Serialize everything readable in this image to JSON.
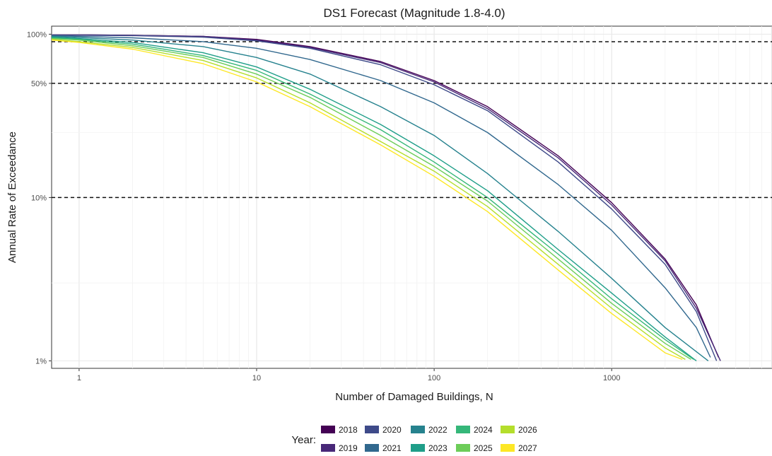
{
  "chart_data": {
    "type": "line",
    "title": "DS1 Forecast (Magnitude 1.8-4.0)",
    "xlabel": "Number of Damaged Buildings, N",
    "ylabel": "Annual Rate of Exceedance",
    "x_scale": "log",
    "y_scale": "log",
    "xlim": [
      0.7,
      8000
    ],
    "ylim": [
      0.009,
      1.12
    ],
    "x_ticks": [
      {
        "value": 1,
        "label": "1"
      },
      {
        "value": 10,
        "label": "10"
      },
      {
        "value": 100,
        "label": "100"
      },
      {
        "value": 1000,
        "label": "1000"
      }
    ],
    "y_ticks": [
      {
        "value": 0.01,
        "label": "1%"
      },
      {
        "value": 0.1,
        "label": "10%"
      },
      {
        "value": 0.5,
        "label": "50%"
      },
      {
        "value": 1.0,
        "label": "100%"
      }
    ],
    "reference_lines": [
      0.9,
      0.5,
      0.1
    ],
    "grid": true,
    "legend": {
      "title": "Year:",
      "position": "bottom"
    },
    "series": [
      {
        "name": "2018",
        "color": "#440154",
        "x": [
          0.7,
          1,
          2,
          5,
          10,
          20,
          50,
          100,
          200,
          500,
          1000,
          2000,
          3000,
          4000
        ],
        "y": [
          0.99,
          0.99,
          0.985,
          0.97,
          0.93,
          0.84,
          0.68,
          0.52,
          0.36,
          0.18,
          0.093,
          0.042,
          0.022,
          0.0105
        ]
      },
      {
        "name": "2019",
        "color": "#482878",
        "x": [
          0.7,
          1,
          2,
          5,
          10,
          20,
          50,
          100,
          200,
          500,
          1000,
          2000,
          3000,
          4100
        ],
        "y": [
          0.99,
          0.99,
          0.985,
          0.97,
          0.92,
          0.83,
          0.67,
          0.51,
          0.35,
          0.175,
          0.09,
          0.041,
          0.021,
          0.01
        ]
      },
      {
        "name": "2020",
        "color": "#3E4A89",
        "x": [
          0.7,
          1,
          2,
          5,
          10,
          20,
          50,
          100,
          200,
          500,
          1000,
          2000,
          3000,
          3900
        ],
        "y": [
          0.99,
          0.985,
          0.98,
          0.96,
          0.91,
          0.82,
          0.65,
          0.49,
          0.34,
          0.165,
          0.085,
          0.039,
          0.02,
          0.01
        ]
      },
      {
        "name": "2021",
        "color": "#31688E",
        "x": [
          0.7,
          1,
          2,
          5,
          10,
          20,
          50,
          100,
          200,
          500,
          1000,
          2000,
          3000,
          3600
        ],
        "y": [
          0.98,
          0.97,
          0.95,
          0.9,
          0.82,
          0.7,
          0.52,
          0.38,
          0.25,
          0.12,
          0.063,
          0.028,
          0.016,
          0.0105
        ]
      },
      {
        "name": "2022",
        "color": "#26828E",
        "x": [
          0.7,
          1,
          2,
          5,
          10,
          20,
          50,
          100,
          200,
          500,
          1000,
          2000,
          3500
        ],
        "y": [
          0.97,
          0.955,
          0.92,
          0.84,
          0.72,
          0.57,
          0.36,
          0.24,
          0.14,
          0.062,
          0.032,
          0.016,
          0.01
        ]
      },
      {
        "name": "2023",
        "color": "#1F9E89",
        "x": [
          0.7,
          1,
          2,
          5,
          10,
          20,
          50,
          100,
          200,
          500,
          1000,
          2000,
          3000
        ],
        "y": [
          0.96,
          0.94,
          0.89,
          0.77,
          0.63,
          0.46,
          0.28,
          0.18,
          0.11,
          0.048,
          0.026,
          0.014,
          0.01
        ]
      },
      {
        "name": "2024",
        "color": "#35B779",
        "x": [
          0.7,
          1,
          2,
          5,
          10,
          20,
          50,
          100,
          200,
          500,
          1000,
          2000,
          2900
        ],
        "y": [
          0.95,
          0.93,
          0.87,
          0.74,
          0.6,
          0.43,
          0.26,
          0.165,
          0.1,
          0.045,
          0.024,
          0.0135,
          0.0102
        ]
      },
      {
        "name": "2025",
        "color": "#6DCD59",
        "x": [
          0.7,
          1,
          2,
          5,
          10,
          20,
          50,
          100,
          200,
          500,
          1000,
          2000,
          2800
        ],
        "y": [
          0.94,
          0.92,
          0.85,
          0.72,
          0.57,
          0.41,
          0.24,
          0.155,
          0.095,
          0.042,
          0.0225,
          0.0128,
          0.0102
        ]
      },
      {
        "name": "2026",
        "color": "#B4DE2C",
        "x": [
          0.7,
          1,
          2,
          5,
          10,
          20,
          50,
          100,
          200,
          500,
          1000,
          2000,
          2600
        ],
        "y": [
          0.93,
          0.9,
          0.83,
          0.69,
          0.54,
          0.38,
          0.22,
          0.145,
          0.088,
          0.039,
          0.021,
          0.012,
          0.0102
        ]
      },
      {
        "name": "2027",
        "color": "#FDE725",
        "x": [
          0.7,
          1,
          2,
          5,
          10,
          20,
          50,
          100,
          200,
          500,
          1000,
          2000,
          2500
        ],
        "y": [
          0.92,
          0.89,
          0.81,
          0.66,
          0.51,
          0.36,
          0.21,
          0.135,
          0.082,
          0.036,
          0.0195,
          0.0112,
          0.0102
        ]
      }
    ]
  }
}
